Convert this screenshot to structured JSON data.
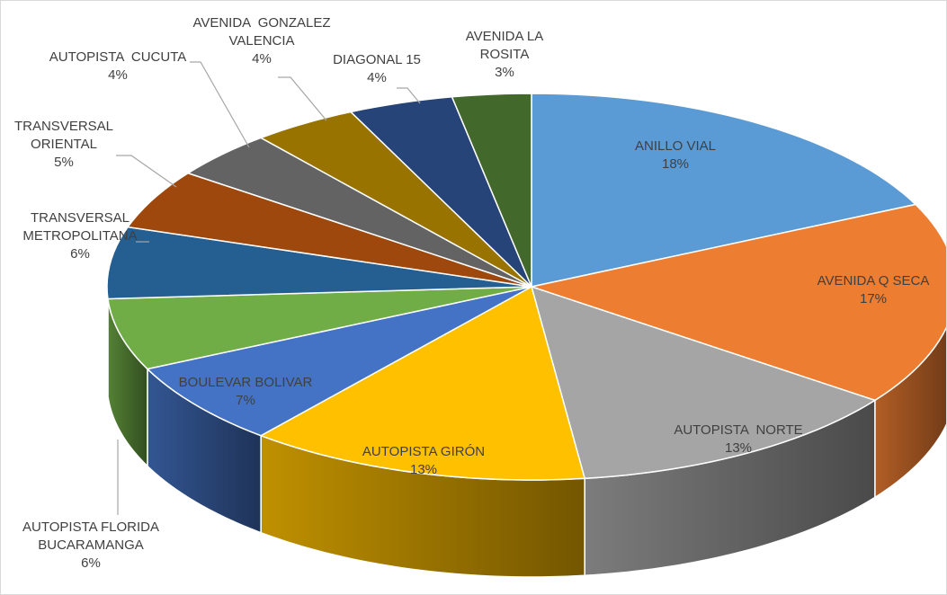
{
  "chart_data": {
    "type": "pie3d",
    "categories": [
      "ANILLO VIAL",
      "AVENIDA Q SECA",
      "AUTOPISTA  NORTE",
      "AUTOPISTA GIRÓN",
      "BOULEVAR BOLIVAR",
      "AUTOPISTA FLORIDA\nBUCARAMANGA",
      "TRANSVERSAL\nMETROPOLITANA",
      "TRANSVERSAL\nORIENTAL",
      "AUTOPISTA  CUCUTA",
      "AVENIDA  GONZALEZ\nVALENCIA",
      "DIAGONAL 15",
      "AVENIDA LA\nROSITA"
    ],
    "values": [
      18,
      17,
      13,
      13,
      7,
      6,
      6,
      5,
      4,
      4,
      4,
      3
    ],
    "value_labels": [
      "18%",
      "17%",
      "13%",
      "13%",
      "7%",
      "6%",
      "6%",
      "5%",
      "4%",
      "4%",
      "4%",
      "3%"
    ],
    "colors": [
      "#5b9bd5",
      "#ed7d31",
      "#a5a5a5",
      "#ffc000",
      "#4472c4",
      "#70ad47",
      "#255e91",
      "#9e480e",
      "#636363",
      "#997300",
      "#264478",
      "#43682b"
    ]
  }
}
